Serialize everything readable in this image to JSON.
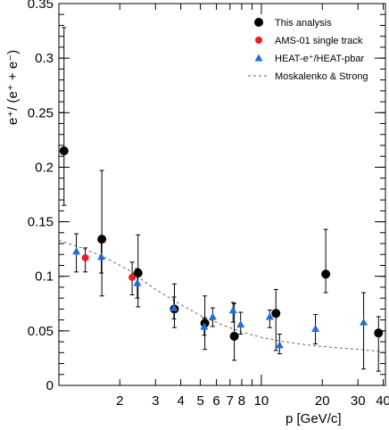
{
  "chart_data": {
    "type": "scatter",
    "xlabel": "p  [GeV/c]",
    "ylabel": "e⁺/ (e⁺ + e⁻)",
    "xscale": "log",
    "xlim": [
      1.0,
      41.0
    ],
    "ylim": [
      0.0,
      0.35
    ],
    "x_ticks": [
      {
        "v": 2,
        "label": "2"
      },
      {
        "v": 3,
        "label": "3"
      },
      {
        "v": 4,
        "label": "4"
      },
      {
        "v": 5,
        "label": "5"
      },
      {
        "v": 6,
        "label": "6"
      },
      {
        "v": 7,
        "label": "7"
      },
      {
        "v": 8,
        "label": "8"
      },
      {
        "v": 10,
        "label": "10"
      },
      {
        "v": 20,
        "label": "20"
      },
      {
        "v": 30,
        "label": "30"
      },
      {
        "v": 40,
        "label": "40"
      }
    ],
    "y_ticks": [
      {
        "v": 0,
        "label": "0"
      },
      {
        "v": 0.05,
        "label": "0.05"
      },
      {
        "v": 0.1,
        "label": "0.1"
      },
      {
        "v": 0.15,
        "label": "0.15"
      },
      {
        "v": 0.2,
        "label": "0.2"
      },
      {
        "v": 0.25,
        "label": "0.25"
      },
      {
        "v": 0.3,
        "label": "0.3"
      },
      {
        "v": 0.35,
        "label": "0.35"
      }
    ],
    "legend_position": "top-right",
    "series": [
      {
        "name": "This analysis",
        "marker": "circle",
        "color": "#000000",
        "points": [
          {
            "x": 1.06,
            "y": 0.215,
            "lo": 0.165,
            "hi": 0.328
          },
          {
            "x": 1.63,
            "y": 0.134,
            "lo": 0.082,
            "hi": 0.197
          },
          {
            "x": 2.46,
            "y": 0.103,
            "lo": 0.072,
            "hi": 0.138
          },
          {
            "x": 3.72,
            "y": 0.07,
            "lo": 0.053,
            "hi": 0.093
          },
          {
            "x": 5.26,
            "y": 0.057,
            "lo": 0.033,
            "hi": 0.082
          },
          {
            "x": 7.35,
            "y": 0.045,
            "lo": 0.023,
            "hi": 0.075
          },
          {
            "x": 11.8,
            "y": 0.066,
            "lo": 0.032,
            "hi": 0.088
          },
          {
            "x": 20.8,
            "y": 0.102,
            "lo": 0.085,
            "hi": 0.143
          },
          {
            "x": 37.9,
            "y": 0.048,
            "lo": 0.013,
            "hi": 0.063
          }
        ]
      },
      {
        "name": "AMS-01 single track",
        "marker": "circle",
        "color": "#ee1c1c",
        "points": [
          {
            "x": 1.35,
            "y": 0.117,
            "lo": 0.104,
            "hi": 0.126
          },
          {
            "x": 2.3,
            "y": 0.099,
            "lo": 0.083,
            "hi": 0.113
          }
        ]
      },
      {
        "name": "HEAT-e⁺/HEAT-pbar",
        "marker": "triangle",
        "color": "#1e6fd9",
        "points": [
          {
            "x": 1.22,
            "y": 0.123,
            "lo": 0.104,
            "hi": 0.139
          },
          {
            "x": 1.62,
            "y": 0.118,
            "lo": 0.103,
            "hi": 0.133
          },
          {
            "x": 2.44,
            "y": 0.094,
            "lo": 0.08,
            "hi": 0.107
          },
          {
            "x": 3.7,
            "y": 0.071,
            "lo": 0.061,
            "hi": 0.081
          },
          {
            "x": 5.22,
            "y": 0.054,
            "lo": 0.046,
            "hi": 0.062
          },
          {
            "x": 5.75,
            "y": 0.063,
            "lo": 0.054,
            "hi": 0.071
          },
          {
            "x": 7.25,
            "y": 0.069,
            "lo": 0.058,
            "hi": 0.076
          },
          {
            "x": 7.9,
            "y": 0.056,
            "lo": 0.047,
            "hi": 0.067
          },
          {
            "x": 11.0,
            "y": 0.063,
            "lo": 0.053,
            "hi": 0.069
          },
          {
            "x": 12.3,
            "y": 0.037,
            "lo": 0.029,
            "hi": 0.047
          },
          {
            "x": 18.5,
            "y": 0.052,
            "lo": 0.038,
            "hi": 0.065
          },
          {
            "x": 32.0,
            "y": 0.058,
            "lo": 0.015,
            "hi": 0.085
          }
        ]
      },
      {
        "name": "Moskalenko & Strong",
        "type": "line",
        "dash": true,
        "color": "#666666",
        "points": [
          {
            "x": 1.0,
            "y": 0.133
          },
          {
            "x": 1.3,
            "y": 0.126
          },
          {
            "x": 1.7,
            "y": 0.117
          },
          {
            "x": 2.2,
            "y": 0.106
          },
          {
            "x": 3.0,
            "y": 0.088
          },
          {
            "x": 4.0,
            "y": 0.074
          },
          {
            "x": 5.0,
            "y": 0.064
          },
          {
            "x": 6.5,
            "y": 0.055
          },
          {
            "x": 8.0,
            "y": 0.049
          },
          {
            "x": 10.0,
            "y": 0.044
          },
          {
            "x": 13.0,
            "y": 0.04
          },
          {
            "x": 17.0,
            "y": 0.037
          },
          {
            "x": 22.0,
            "y": 0.035
          },
          {
            "x": 30.0,
            "y": 0.033
          },
          {
            "x": 40.0,
            "y": 0.031
          }
        ]
      }
    ]
  }
}
